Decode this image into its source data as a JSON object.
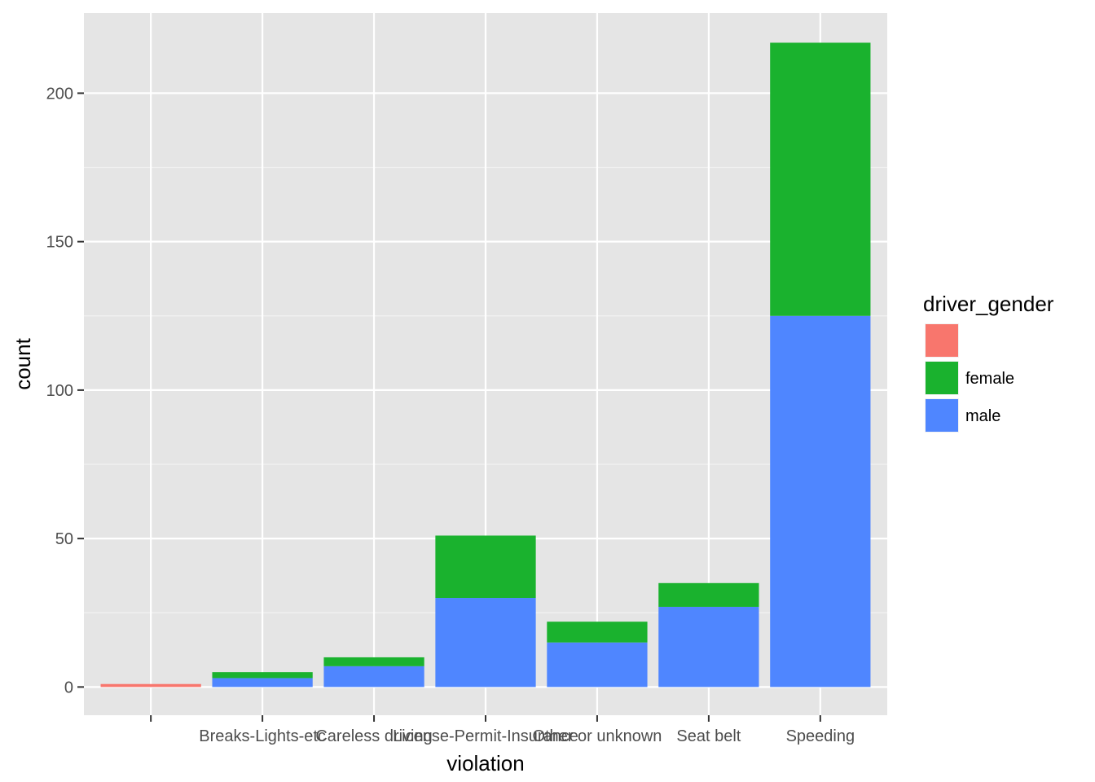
{
  "chart_data": {
    "type": "bar",
    "stacked": true,
    "categories": [
      "",
      "Breaks-Lights-etc",
      "Careless driving",
      "License-Permit-Insurance",
      "Other or unknown",
      "Seat belt",
      "Speeding"
    ],
    "series": [
      {
        "name": "",
        "color": "#F8766D",
        "values": [
          1,
          0,
          0,
          0,
          0,
          0,
          0
        ]
      },
      {
        "name": "female",
        "color": "#1AB22E",
        "values": [
          0,
          2,
          3,
          21,
          7,
          8,
          92
        ]
      },
      {
        "name": "male",
        "color": "#4F86FF",
        "values": [
          0,
          3,
          7,
          30,
          15,
          27,
          125
        ]
      }
    ],
    "title": "",
    "xlabel": "violation",
    "ylabel": "count",
    "ylim": [
      -9.5,
      227
    ],
    "yticks": [
      0,
      50,
      100,
      150,
      200
    ],
    "grid": true,
    "legend": {
      "title": "driver_gender",
      "position": "right"
    },
    "background": "#E5E5E5"
  }
}
